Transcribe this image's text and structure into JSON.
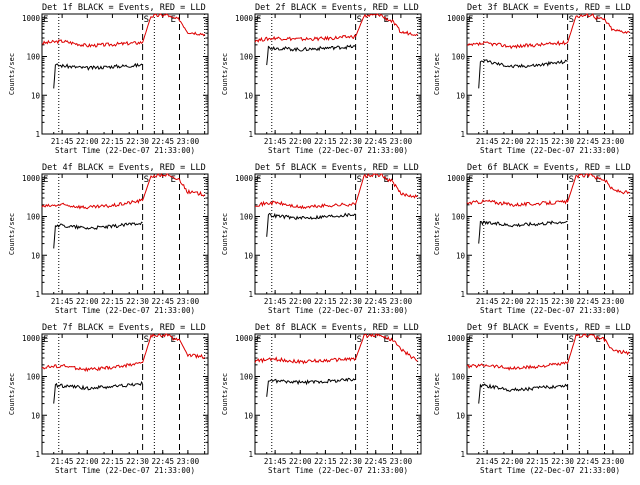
{
  "page": {
    "xlabel": "Start Time (22-Dec-07 21:33:00)",
    "ylabel": "Counts/sec",
    "ytick_labels": [
      "1",
      "10",
      "100",
      "1000"
    ],
    "xtick_labels": [
      "21:45",
      "22:00",
      "22:15",
      "22:30",
      "22:45",
      "23:00"
    ],
    "marker_labels": {
      "start": "E",
      "mid": "S",
      "end": "E"
    },
    "series_colors": {
      "events": "#000000",
      "lld": "#dd0000"
    }
  },
  "chart_data": [
    {
      "type": "line",
      "title": "Det 1f BLACK = Events, RED = LLD",
      "xlabel": "Start Time (22-Dec-07 21:33:00)",
      "ylabel": "Counts/sec",
      "yscale": "log",
      "ylim": [
        1,
        1000
      ],
      "xlim": [
        "21:33",
        "23:12"
      ],
      "x_ticks": [
        "21:45",
        "22:00",
        "22:15",
        "22:30",
        "22:45",
        "23:00"
      ],
      "vlines": {
        "dotted": [
          "21:43",
          "22:40",
          "23:10"
        ],
        "dashed": [
          "22:33",
          "22:55"
        ]
      },
      "series": [
        {
          "color": "red",
          "x": [
            "21:33",
            "21:45",
            "22:00",
            "22:15",
            "22:33",
            "22:38",
            "22:48",
            "22:50",
            "22:55",
            "23:00",
            "23:10"
          ],
          "y": [
            220,
            250,
            190,
            205,
            230,
            1100,
            1200,
            1000,
            900,
            430,
            380
          ]
        },
        {
          "color": "black",
          "x": [
            "21:40",
            "21:41",
            "22:00",
            "22:15",
            "22:33"
          ],
          "y": [
            15,
            60,
            50,
            55,
            60
          ]
        }
      ]
    },
    {
      "type": "line",
      "title": "Det 2f BLACK = Events, RED = LLD",
      "xlabel": "Start Time (22-Dec-07 21:33:00)",
      "ylabel": "Counts/sec",
      "yscale": "log",
      "ylim": [
        1,
        1000
      ],
      "xlim": [
        "21:33",
        "23:12"
      ],
      "x_ticks": [
        "21:45",
        "22:00",
        "22:15",
        "22:30",
        "22:45",
        "23:00"
      ],
      "vlines": {
        "dotted": [
          "21:43",
          "22:40",
          "23:10"
        ],
        "dashed": [
          "22:33",
          "22:55"
        ]
      },
      "series": [
        {
          "color": "red",
          "x": [
            "21:33",
            "21:45",
            "22:00",
            "22:15",
            "22:33",
            "22:38",
            "22:48",
            "22:50",
            "22:55",
            "23:00",
            "23:10"
          ],
          "y": [
            260,
            300,
            280,
            290,
            330,
            1100,
            1200,
            1000,
            800,
            420,
            380
          ]
        },
        {
          "color": "black",
          "x": [
            "21:40",
            "21:41",
            "22:00",
            "22:15",
            "22:33"
          ],
          "y": [
            60,
            170,
            150,
            165,
            180
          ]
        }
      ]
    },
    {
      "type": "line",
      "title": "Det 3f BLACK = Events, RED = LLD",
      "xlabel": "Start Time (22-Dec-07 21:33:00)",
      "ylabel": "Counts/sec",
      "yscale": "log",
      "ylim": [
        1,
        1000
      ],
      "xlim": [
        "21:33",
        "23:12"
      ],
      "x_ticks": [
        "21:45",
        "22:00",
        "22:15",
        "22:30",
        "22:45",
        "23:00"
      ],
      "vlines": {
        "dotted": [
          "21:43",
          "22:40",
          "23:10"
        ],
        "dashed": [
          "22:33",
          "22:55"
        ]
      },
      "series": [
        {
          "color": "red",
          "x": [
            "21:33",
            "21:45",
            "22:00",
            "22:15",
            "22:33",
            "22:38",
            "22:48",
            "22:50",
            "22:55",
            "23:00",
            "23:10"
          ],
          "y": [
            190,
            220,
            180,
            200,
            230,
            1100,
            1200,
            1000,
            900,
            480,
            420
          ]
        },
        {
          "color": "black",
          "x": [
            "21:40",
            "21:41",
            "22:00",
            "22:15",
            "22:33"
          ],
          "y": [
            15,
            80,
            55,
            60,
            75
          ]
        }
      ]
    },
    {
      "type": "line",
      "title": "Det 4f BLACK = Events, RED = LLD",
      "xlabel": "Start Time (22-Dec-07 21:33:00)",
      "ylabel": "Counts/sec",
      "yscale": "log",
      "ylim": [
        1,
        1000
      ],
      "xlim": [
        "21:33",
        "23:12"
      ],
      "x_ticks": [
        "21:45",
        "22:00",
        "22:15",
        "22:30",
        "22:45",
        "23:00"
      ],
      "vlines": {
        "dotted": [
          "21:43",
          "22:40",
          "23:10"
        ],
        "dashed": [
          "22:33",
          "22:55"
        ]
      },
      "series": [
        {
          "color": "red",
          "x": [
            "21:33",
            "21:45",
            "22:00",
            "22:15",
            "22:33",
            "22:38",
            "22:48",
            "22:50",
            "22:55",
            "23:00",
            "23:10"
          ],
          "y": [
            180,
            200,
            170,
            190,
            260,
            1100,
            1200,
            1000,
            900,
            430,
            370
          ]
        },
        {
          "color": "black",
          "x": [
            "21:40",
            "21:41",
            "22:00",
            "22:15",
            "22:33"
          ],
          "y": [
            15,
            60,
            50,
            55,
            70
          ]
        }
      ]
    },
    {
      "type": "line",
      "title": "Det 5f BLACK = Events, RED = LLD",
      "xlabel": "Start Time (22-Dec-07 21:33:00)",
      "ylabel": "Counts/sec",
      "yscale": "log",
      "ylim": [
        1,
        1000
      ],
      "xlim": [
        "21:33",
        "23:12"
      ],
      "x_ticks": [
        "21:45",
        "22:00",
        "22:15",
        "22:30",
        "22:45",
        "23:00"
      ],
      "vlines": {
        "dotted": [
          "21:43",
          "22:40",
          "23:10"
        ],
        "dashed": [
          "22:33",
          "22:55"
        ]
      },
      "series": [
        {
          "color": "red",
          "x": [
            "21:33",
            "21:45",
            "22:00",
            "22:15",
            "22:33",
            "22:38",
            "22:48",
            "22:50",
            "22:55",
            "23:00",
            "23:10"
          ],
          "y": [
            200,
            230,
            170,
            190,
            210,
            1100,
            1200,
            1000,
            800,
            380,
            330
          ]
        },
        {
          "color": "black",
          "x": [
            "21:40",
            "21:41",
            "22:00",
            "22:15",
            "22:33"
          ],
          "y": [
            30,
            110,
            90,
            100,
            115
          ]
        }
      ]
    },
    {
      "type": "line",
      "title": "Det 6f BLACK = Events, RED = LLD",
      "xlabel": "Start Time (22-Dec-07 21:33:00)",
      "ylabel": "Counts/sec",
      "yscale": "log",
      "ylim": [
        1,
        1000
      ],
      "xlim": [
        "21:33",
        "23:12"
      ],
      "x_ticks": [
        "21:45",
        "22:00",
        "22:15",
        "22:30",
        "22:45",
        "23:00"
      ],
      "vlines": {
        "dotted": [
          "21:43",
          "22:40",
          "23:10"
        ],
        "dashed": [
          "22:33",
          "22:55"
        ]
      },
      "series": [
        {
          "color": "red",
          "x": [
            "21:33",
            "21:45",
            "22:00",
            "22:15",
            "22:33",
            "22:38",
            "22:48",
            "22:50",
            "22:55",
            "23:00",
            "23:10"
          ],
          "y": [
            220,
            250,
            200,
            215,
            240,
            1100,
            1200,
            1000,
            900,
            480,
            400
          ]
        },
        {
          "color": "black",
          "x": [
            "21:40",
            "21:41",
            "22:00",
            "22:15",
            "22:33"
          ],
          "y": [
            20,
            70,
            60,
            65,
            75
          ]
        }
      ]
    },
    {
      "type": "line",
      "title": "Det 7f BLACK = Events, RED = LLD",
      "xlabel": "Start Time (22-Dec-07 21:33:00)",
      "ylabel": "Counts/sec",
      "yscale": "log",
      "ylim": [
        1,
        1000
      ],
      "xlim": [
        "21:33",
        "23:12"
      ],
      "x_ticks": [
        "21:45",
        "22:00",
        "22:15",
        "22:30",
        "22:45",
        "23:00"
      ],
      "vlines": {
        "dotted": [
          "21:43",
          "22:40",
          "23:10"
        ],
        "dashed": [
          "22:33",
          "22:55"
        ]
      },
      "series": [
        {
          "color": "red",
          "x": [
            "21:33",
            "21:45",
            "22:00",
            "22:15",
            "22:33",
            "22:38",
            "22:48",
            "22:50",
            "22:55",
            "23:00",
            "23:10"
          ],
          "y": [
            170,
            190,
            150,
            170,
            230,
            1100,
            1200,
            1000,
            900,
            350,
            320
          ]
        },
        {
          "color": "black",
          "x": [
            "21:40",
            "21:41",
            "22:00",
            "22:15",
            "22:33"
          ],
          "y": [
            20,
            60,
            50,
            55,
            65
          ]
        }
      ]
    },
    {
      "type": "line",
      "title": "Det 8f BLACK = Events, RED = LLD",
      "xlabel": "Start Time (22-Dec-07 21:33:00)",
      "ylabel": "Counts/sec",
      "yscale": "log",
      "ylim": [
        1,
        1000
      ],
      "xlim": [
        "21:33",
        "23:12"
      ],
      "x_ticks": [
        "21:45",
        "22:00",
        "22:15",
        "22:30",
        "22:45",
        "23:00"
      ],
      "vlines": {
        "dotted": [
          "21:43",
          "22:40",
          "23:10"
        ],
        "dashed": [
          "22:33",
          "22:55"
        ]
      },
      "series": [
        {
          "color": "red",
          "x": [
            "21:33",
            "21:45",
            "22:00",
            "22:15",
            "22:33",
            "22:38",
            "22:48",
            "22:50",
            "22:55",
            "23:00",
            "23:10"
          ],
          "y": [
            250,
            280,
            240,
            260,
            290,
            1100,
            1200,
            1000,
            900,
            500,
            250
          ]
        },
        {
          "color": "black",
          "x": [
            "21:40",
            "21:41",
            "22:00",
            "22:15",
            "22:33"
          ],
          "y": [
            30,
            80,
            70,
            75,
            85
          ]
        }
      ]
    },
    {
      "type": "line",
      "title": "Det 9f BLACK = Events, RED = LLD",
      "xlabel": "Start Time (22-Dec-07 21:33:00)",
      "ylabel": "Counts/sec",
      "yscale": "log",
      "ylim": [
        1,
        1000
      ],
      "xlim": [
        "21:33",
        "23:12"
      ],
      "x_ticks": [
        "21:45",
        "22:00",
        "22:15",
        "22:30",
        "22:45",
        "23:00"
      ],
      "vlines": {
        "dotted": [
          "21:43",
          "22:40",
          "23:10"
        ],
        "dashed": [
          "22:33",
          "22:55"
        ]
      },
      "series": [
        {
          "color": "red",
          "x": [
            "21:33",
            "21:45",
            "22:00",
            "22:15",
            "22:33",
            "22:38",
            "22:48",
            "22:50",
            "22:55",
            "23:00",
            "23:10"
          ],
          "y": [
            180,
            200,
            160,
            180,
            220,
            1100,
            1200,
            1000,
            900,
            460,
            400
          ]
        },
        {
          "color": "black",
          "x": [
            "21:40",
            "21:41",
            "22:00",
            "22:15",
            "22:33"
          ],
          "y": [
            20,
            60,
            45,
            50,
            60
          ]
        }
      ]
    }
  ]
}
